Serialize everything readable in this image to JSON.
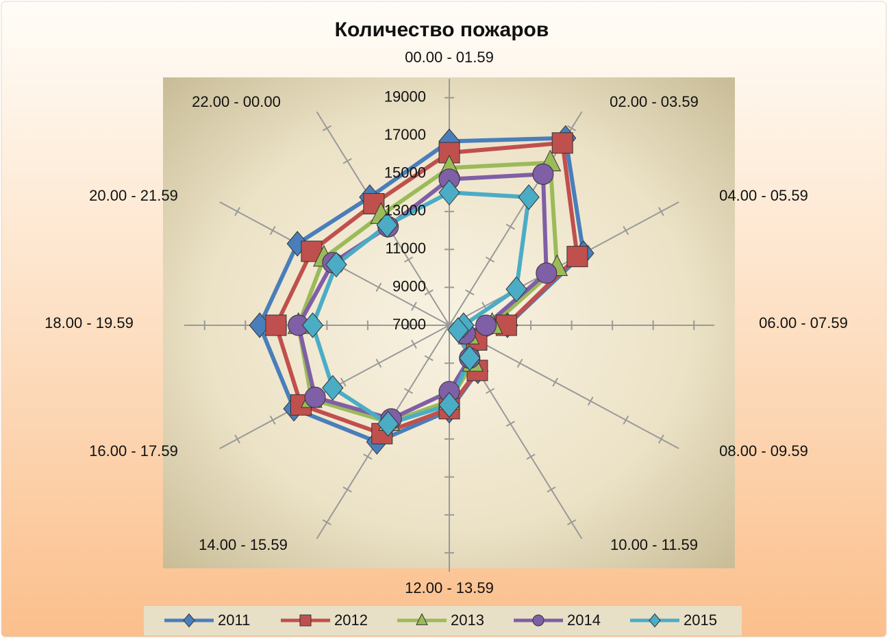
{
  "chart_data": {
    "type": "radar",
    "title": "Количество пожаров",
    "categories": [
      "00.00 - 01.59",
      "02.00 - 03.59",
      "04.00 - 05.59",
      "06.00 - 07.59",
      "08.00 - 09.59",
      "10.00 - 11.59",
      "12.00 - 13.59",
      "14.00 - 15.59",
      "16.00 - 17.59",
      "18.00 - 19.59",
      "20.00 - 21.59",
      "22.00 - 00.00"
    ],
    "series": [
      {
        "name": "2011",
        "color": "#4a7ebb",
        "marker": "diamond",
        "values": [
          16700,
          18400,
          14600,
          9850,
          8200,
          9800,
          11500,
          14100,
          15800,
          16300,
          15600,
          14800
        ]
      },
      {
        "name": "2012",
        "color": "#c0504d",
        "marker": "square",
        "values": [
          16100,
          18100,
          14250,
          9800,
          8550,
          9750,
          11400,
          13600,
          15400,
          15500,
          14800,
          14400
        ]
      },
      {
        "name": "2013",
        "color": "#9bbb59",
        "marker": "triangle",
        "values": [
          15300,
          16900,
          13100,
          9100,
          8100,
          9300,
          11000,
          12900,
          14800,
          14400,
          14100,
          13700
        ]
      },
      {
        "name": "2014",
        "color": "#7f5fa5",
        "marker": "circle",
        "values": [
          14700,
          16200,
          12500,
          8800,
          7900,
          9000,
          10500,
          12700,
          14600,
          14400,
          13600,
          13000
        ]
      },
      {
        "name": "2015",
        "color": "#4bacc6",
        "marker": "diamond",
        "values": [
          14000,
          14800,
          10800,
          7700,
          7500,
          9000,
          11200,
          13000,
          13600,
          13700,
          13400,
          13100
        ]
      }
    ],
    "ylim": [
      7000,
      20000
    ],
    "yticks": [
      7000,
      9000,
      11000,
      13000,
      15000,
      17000,
      19000
    ],
    "grid": false,
    "legend": "bottom"
  }
}
